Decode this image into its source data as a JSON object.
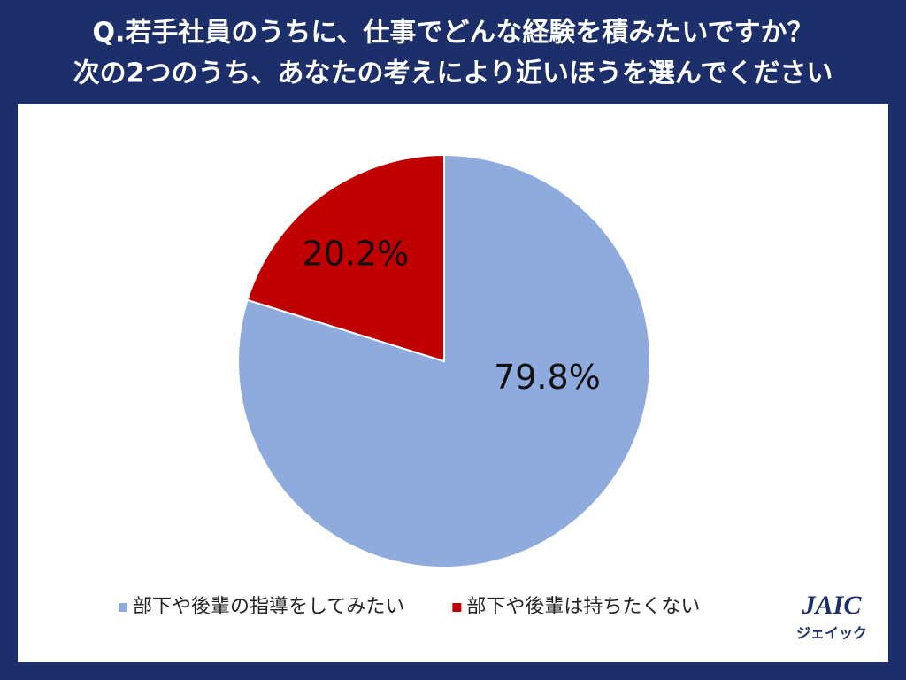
{
  "chart_data": {
    "type": "pie",
    "title_lines": [
      "Q.若手社員のうちに、仕事でどんな経験を積みたいですか？",
      "次の2つのうち、あなたの考えにより近いほうを選んでください"
    ],
    "categories": [
      "部下や後輩の指導をしてみたい",
      "部下や後輩は持ちたくない"
    ],
    "values": [
      79.8,
      20.2
    ],
    "value_labels": [
      "79.8%",
      "20.2%"
    ],
    "colors": [
      "#8faadc",
      "#c00000"
    ],
    "legend": "bottom"
  },
  "logo": {
    "mark": "JAIC",
    "kana": "ジェイック"
  }
}
